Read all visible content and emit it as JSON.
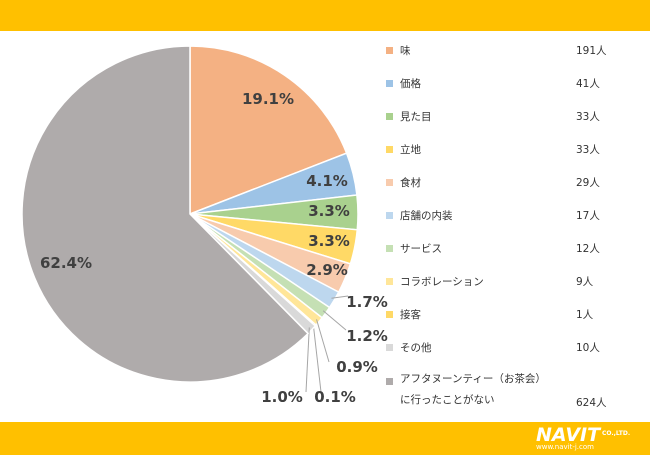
{
  "colors": {
    "band": "#ffc000",
    "slices": [
      "#f4b183",
      "#9dc3e6",
      "#a9d18e",
      "#ffd966",
      "#f8cbad",
      "#bdd7ee",
      "#c5e0b4",
      "#ffe699",
      "#ffd966",
      "#d9d9d9",
      "#afabab"
    ]
  },
  "chart_data": {
    "type": "pie",
    "start": "12 o'clock, clockwise",
    "slices": [
      {
        "label": "味",
        "count": "191人",
        "percent": 19.1,
        "percent_label": "19.1%"
      },
      {
        "label": "価格",
        "count": "41人",
        "percent": 4.1,
        "percent_label": "4.1%"
      },
      {
        "label": "見た目",
        "count": "33人",
        "percent": 3.3,
        "percent_label": "3.3%"
      },
      {
        "label": "立地",
        "count": "33人",
        "percent": 3.3,
        "percent_label": "3.3%"
      },
      {
        "label": "食材",
        "count": "29人",
        "percent": 2.9,
        "percent_label": "2.9%"
      },
      {
        "label": "店舗の内装",
        "count": "17人",
        "percent": 1.7,
        "percent_label": "1.7%"
      },
      {
        "label": "サービス",
        "count": "12人",
        "percent": 1.2,
        "percent_label": "1.2%"
      },
      {
        "label": "コラボレーション",
        "count": "9人",
        "percent": 0.9,
        "percent_label": "0.9%"
      },
      {
        "label": "接客",
        "count": "1人",
        "percent": 0.1,
        "percent_label": "0.1%"
      },
      {
        "label": "その他",
        "count": "10人",
        "percent": 1.0,
        "percent_label": "1.0%"
      },
      {
        "label": "アフタヌーンティー（お茶会）に行ったことがない",
        "count": "624人",
        "percent": 62.4,
        "percent_label": "62.4%"
      }
    ]
  },
  "logo": {
    "name": "NAVIT",
    "suffix": "CO.,LTD.",
    "url": "www.navit-j.com"
  }
}
